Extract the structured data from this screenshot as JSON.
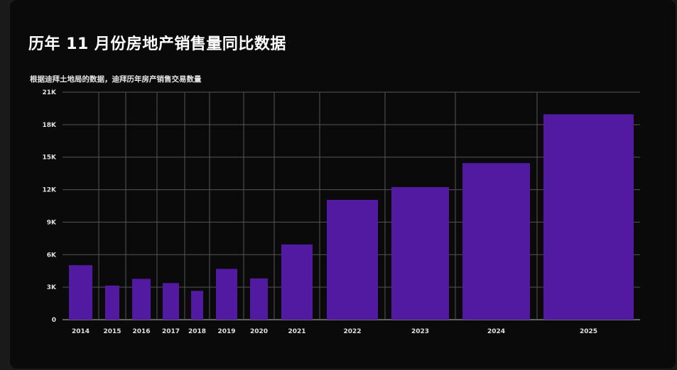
{
  "title": "历年 11 月份房地产销售量同比数据",
  "subtitle": "根据迪拜土地局的数据，迪拜历年房产销售交易数量",
  "chart_data": {
    "type": "bar",
    "title": "历年 11 月份房地产销售量同比数据",
    "subtitle": "根据迪拜土地局的数据，迪拜历年房产销售交易数量",
    "categories": [
      "2014",
      "2015",
      "2016",
      "2017",
      "2018",
      "2019",
      "2020",
      "2021",
      "2022",
      "2023",
      "2024",
      "2025"
    ],
    "values": [
      5030,
      3150,
      3770,
      3380,
      2660,
      4690,
      3810,
      6940,
      11060,
      12240,
      14450,
      18960
    ],
    "ylim": [
      0,
      21000
    ],
    "yticks": [
      0,
      3000,
      6000,
      9000,
      12000,
      15000,
      18000,
      21000
    ],
    "ytick_labels": [
      "0",
      "3K",
      "6K",
      "9K",
      "12K",
      "15K",
      "18K",
      "21K"
    ],
    "xlabel": "",
    "ylabel": "",
    "grid": true,
    "bar_color": "#521aa0",
    "background": "#0a0a0a"
  }
}
